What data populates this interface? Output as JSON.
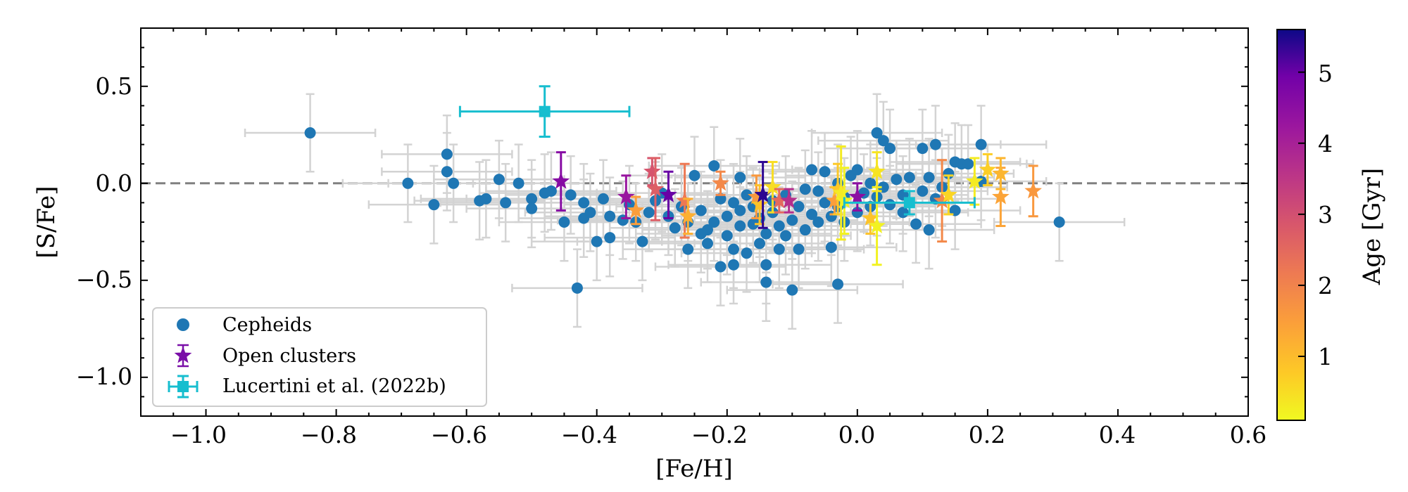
{
  "chart_data": {
    "type": "scatter",
    "xlabel": "[Fe/H]",
    "ylabel": "[S/Fe]",
    "xlim": [
      -1.1,
      0.6
    ],
    "ylim": [
      -1.2,
      0.8
    ],
    "xticks": [
      -1.0,
      -0.8,
      -0.6,
      -0.4,
      -0.2,
      0.0,
      0.2,
      0.4,
      0.6
    ],
    "xtick_labels": [
      "−1.0",
      "−0.8",
      "−0.6",
      "−0.4",
      "−0.2",
      "0.0",
      "0.2",
      "0.4",
      "0.6"
    ],
    "yticks": [
      -1.0,
      -0.5,
      0.0,
      0.5
    ],
    "ytick_labels": [
      "−1.0",
      "−0.5",
      "0.0",
      "0.5"
    ],
    "reference_line_y": 0.0,
    "legend_position": "lower-left",
    "grid": false,
    "colorbar": {
      "label": "Age [Gyr]",
      "range": [
        0.1,
        5.6
      ],
      "ticks": [
        1,
        2,
        3,
        4,
        5
      ],
      "tick_labels": [
        "1",
        "2",
        "3",
        "4",
        "5"
      ],
      "colormap": "plasma_r"
    },
    "series": [
      {
        "name": "Cepheids",
        "marker": "circle",
        "color": "#1f77b4",
        "errorbar_color": "#d3d3d3",
        "xerr": 0.1,
        "yerr": 0.2,
        "points": [
          [
            -0.84,
            0.26
          ],
          [
            -0.69,
            0.0
          ],
          [
            -0.65,
            -0.11
          ],
          [
            -0.63,
            0.15
          ],
          [
            -0.63,
            0.06
          ],
          [
            -0.62,
            0.0
          ],
          [
            -0.58,
            -0.09
          ],
          [
            -0.57,
            -0.08
          ],
          [
            -0.55,
            0.02
          ],
          [
            -0.54,
            -0.1
          ],
          [
            -0.52,
            0.0
          ],
          [
            -0.5,
            -0.08
          ],
          [
            -0.5,
            -0.13
          ],
          [
            -0.48,
            -0.05
          ],
          [
            -0.47,
            -0.04
          ],
          [
            -0.45,
            -0.2
          ],
          [
            -0.44,
            -0.06
          ],
          [
            -0.43,
            -0.54
          ],
          [
            -0.42,
            -0.18
          ],
          [
            -0.42,
            -0.1
          ],
          [
            -0.41,
            -0.15
          ],
          [
            -0.4,
            -0.3
          ],
          [
            -0.39,
            -0.08
          ],
          [
            -0.38,
            -0.28
          ],
          [
            -0.38,
            -0.17
          ],
          [
            -0.36,
            -0.19
          ],
          [
            -0.35,
            -0.11
          ],
          [
            -0.34,
            -0.2
          ],
          [
            -0.33,
            -0.3
          ],
          [
            -0.32,
            -0.15
          ],
          [
            -0.31,
            -0.09
          ],
          [
            -0.3,
            -0.05
          ],
          [
            -0.29,
            -0.17
          ],
          [
            -0.28,
            -0.23
          ],
          [
            -0.27,
            -0.12
          ],
          [
            -0.26,
            -0.2
          ],
          [
            -0.26,
            -0.34
          ],
          [
            -0.25,
            0.04
          ],
          [
            -0.24,
            -0.26
          ],
          [
            -0.24,
            -0.14
          ],
          [
            -0.23,
            -0.24
          ],
          [
            -0.23,
            -0.31
          ],
          [
            -0.22,
            0.09
          ],
          [
            -0.22,
            -0.2
          ],
          [
            -0.21,
            -0.43
          ],
          [
            -0.21,
            -0.08
          ],
          [
            -0.2,
            -0.27
          ],
          [
            -0.2,
            -0.17
          ],
          [
            -0.19,
            -0.42
          ],
          [
            -0.19,
            -0.34
          ],
          [
            -0.19,
            -0.1
          ],
          [
            -0.18,
            -0.22
          ],
          [
            -0.18,
            -0.14
          ],
          [
            -0.18,
            0.03
          ],
          [
            -0.17,
            -0.36
          ],
          [
            -0.17,
            -0.06
          ],
          [
            -0.16,
            -0.21
          ],
          [
            -0.16,
            -0.12
          ],
          [
            -0.15,
            -0.31
          ],
          [
            -0.15,
            -0.18
          ],
          [
            -0.14,
            -0.51
          ],
          [
            -0.14,
            -0.42
          ],
          [
            -0.14,
            -0.26
          ],
          [
            -0.13,
            -0.09
          ],
          [
            -0.13,
            -0.15
          ],
          [
            -0.12,
            -0.34
          ],
          [
            -0.12,
            -0.22
          ],
          [
            -0.11,
            -0.27
          ],
          [
            -0.11,
            -0.06
          ],
          [
            -0.1,
            -0.55
          ],
          [
            -0.1,
            -0.19
          ],
          [
            -0.09,
            -0.34
          ],
          [
            -0.09,
            -0.12
          ],
          [
            -0.08,
            -0.24
          ],
          [
            -0.08,
            -0.03
          ],
          [
            -0.07,
            0.07
          ],
          [
            -0.07,
            -0.16
          ],
          [
            -0.06,
            -0.2
          ],
          [
            -0.06,
            -0.04
          ],
          [
            -0.05,
            -0.1
          ],
          [
            -0.05,
            0.06
          ],
          [
            -0.04,
            -0.33
          ],
          [
            -0.04,
            -0.17
          ],
          [
            -0.03,
            -0.52
          ],
          [
            -0.03,
            -0.12
          ],
          [
            -0.03,
            0.0
          ],
          [
            -0.02,
            -0.2
          ],
          [
            -0.02,
            -0.07
          ],
          [
            -0.01,
            0.04
          ],
          [
            0.0,
            -0.15
          ],
          [
            0.0,
            0.07
          ],
          [
            0.01,
            -0.05
          ],
          [
            0.02,
            -0.12
          ],
          [
            0.02,
            0.0
          ],
          [
            0.03,
            0.26
          ],
          [
            0.03,
            -0.07
          ],
          [
            0.04,
            0.22
          ],
          [
            0.04,
            -0.02
          ],
          [
            0.05,
            0.18
          ],
          [
            0.05,
            -0.11
          ],
          [
            0.06,
            0.02
          ],
          [
            0.07,
            -0.06
          ],
          [
            0.07,
            -0.15
          ],
          [
            0.08,
            0.03
          ],
          [
            0.09,
            -0.21
          ],
          [
            0.1,
            0.18
          ],
          [
            0.1,
            -0.04
          ],
          [
            0.11,
            -0.24
          ],
          [
            0.11,
            0.03
          ],
          [
            0.12,
            0.2
          ],
          [
            0.12,
            -0.08
          ],
          [
            0.13,
            -0.02
          ],
          [
            0.14,
            0.05
          ],
          [
            0.15,
            0.11
          ],
          [
            0.15,
            -0.14
          ],
          [
            0.16,
            0.1
          ],
          [
            0.17,
            0.1
          ],
          [
            0.19,
            0.2
          ],
          [
            0.19,
            0.01
          ],
          [
            0.31,
            -0.2
          ]
        ]
      },
      {
        "name": "Open clusters",
        "marker": "star",
        "color_by": "age_gyr",
        "legend_color": "#7a0fa8",
        "points": [
          {
            "x": -0.455,
            "y": 0.01,
            "yerr": 0.15,
            "age": 4.6
          },
          {
            "x": -0.355,
            "y": -0.07,
            "yerr": 0.11,
            "age": 4.3
          },
          {
            "x": -0.34,
            "y": -0.14,
            "yerr": 0.07,
            "age": 1.5
          },
          {
            "x": -0.315,
            "y": 0.06,
            "yerr": 0.07,
            "age": 2.9
          },
          {
            "x": -0.31,
            "y": -0.03,
            "yerr": 0.16,
            "age": 2.7
          },
          {
            "x": -0.29,
            "y": -0.06,
            "yerr": 0.12,
            "age": 5.0
          },
          {
            "x": -0.265,
            "y": -0.09,
            "yerr": 0.19,
            "age": 2.2
          },
          {
            "x": -0.26,
            "y": -0.17,
            "yerr": 0.09,
            "age": 1.2
          },
          {
            "x": -0.21,
            "y": 0.0,
            "yerr": 0.06,
            "age": 1.9
          },
          {
            "x": -0.155,
            "y": -0.07,
            "yerr": 0.11,
            "age": 1.6
          },
          {
            "x": -0.15,
            "y": -0.11,
            "yerr": 0.1,
            "age": 0.9
          },
          {
            "x": -0.145,
            "y": -0.06,
            "yerr": 0.17,
            "age": 5.4
          },
          {
            "x": -0.13,
            "y": -0.02,
            "yerr": 0.13,
            "age": 0.5
          },
          {
            "x": -0.12,
            "y": -0.09,
            "yerr": 0.06,
            "age": 2.5
          },
          {
            "x": -0.105,
            "y": -0.09,
            "yerr": 0.06,
            "age": 3.7
          },
          {
            "x": -0.035,
            "y": -0.09,
            "yerr": 0.07,
            "age": 1.5
          },
          {
            "x": -0.03,
            "y": -0.03,
            "yerr": 0.13,
            "age": 0.8
          },
          {
            "x": -0.025,
            "y": -0.05,
            "yerr": 0.24,
            "age": 0.3
          },
          {
            "x": -0.02,
            "y": -0.09,
            "yerr": 0.17,
            "age": 0.2
          },
          {
            "x": 0.0,
            "y": -0.07,
            "yerr": 0.07,
            "age": 4.5
          },
          {
            "x": 0.02,
            "y": -0.18,
            "yerr": 0.08,
            "age": 0.9
          },
          {
            "x": 0.03,
            "y": -0.22,
            "yerr": 0.2,
            "age": 0.2
          },
          {
            "x": 0.03,
            "y": 0.06,
            "yerr": 0.1,
            "age": 0.4
          },
          {
            "x": 0.13,
            "y": -0.09,
            "yerr": 0.21,
            "age": 1.9
          },
          {
            "x": 0.14,
            "y": -0.06,
            "yerr": 0.1,
            "age": 0.6
          },
          {
            "x": 0.18,
            "y": 0.01,
            "yerr": 0.12,
            "age": 0.3
          },
          {
            "x": 0.2,
            "y": 0.07,
            "yerr": 0.08,
            "age": 0.7
          },
          {
            "x": 0.22,
            "y": -0.07,
            "yerr": 0.15,
            "age": 1.4
          },
          {
            "x": 0.22,
            "y": 0.05,
            "yerr": 0.08,
            "age": 1.1
          },
          {
            "x": 0.27,
            "y": -0.04,
            "yerr": 0.13,
            "age": 1.6
          }
        ]
      },
      {
        "name": "Lucertini et al. (2022b)",
        "marker": "square",
        "color": "#17becf",
        "points": [
          {
            "x": -0.48,
            "y": 0.37,
            "xerr": 0.13,
            "yerr": 0.13
          },
          {
            "x": 0.08,
            "y": -0.1,
            "xerr": 0.1,
            "yerr": 0.06
          }
        ]
      }
    ]
  }
}
